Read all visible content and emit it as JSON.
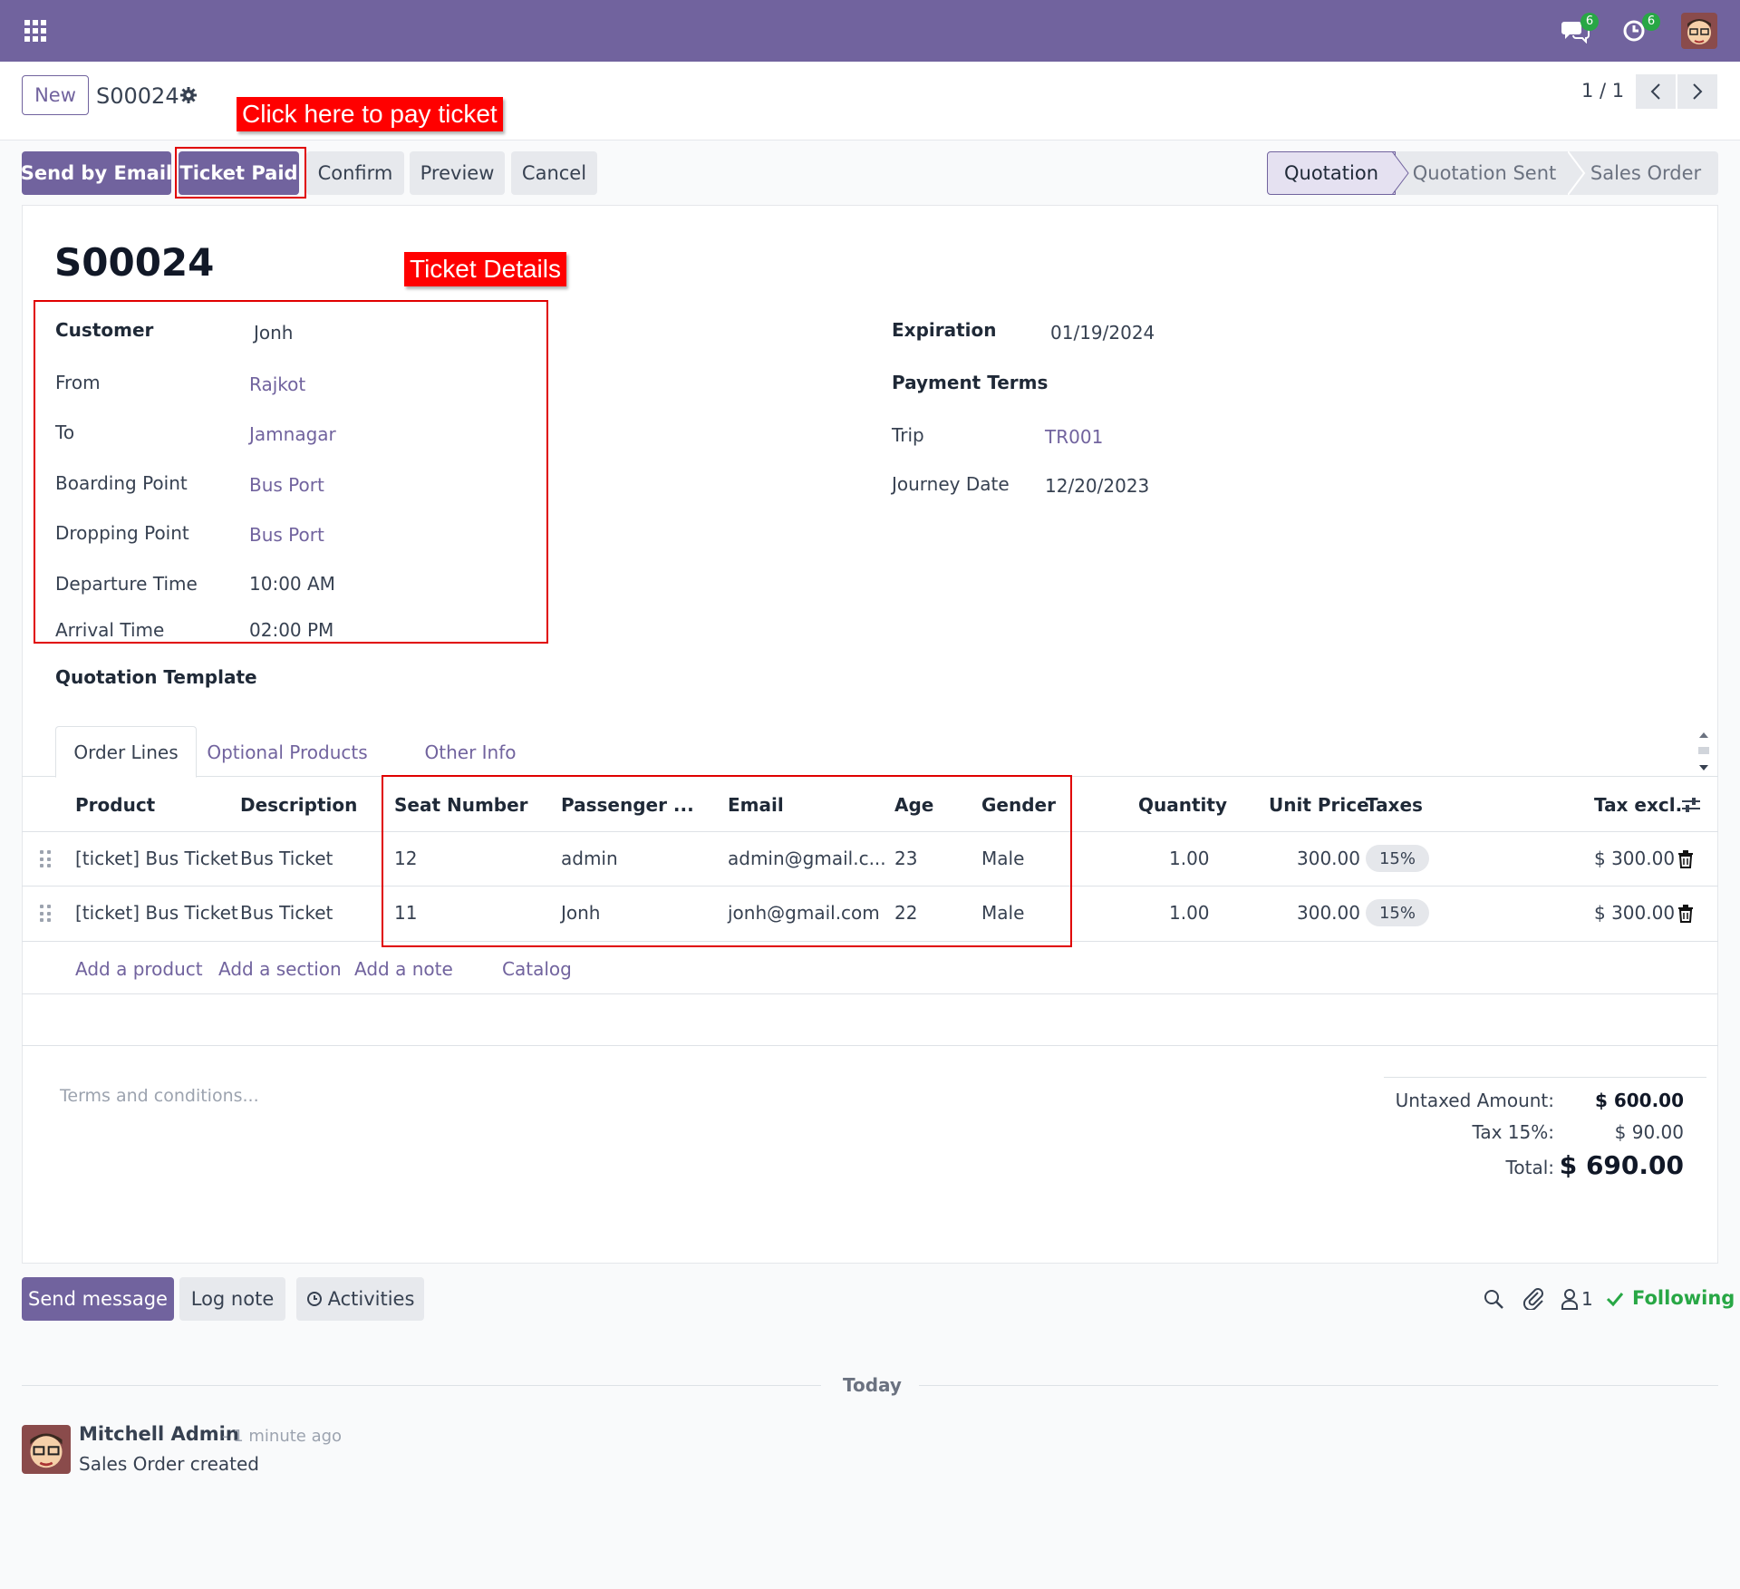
{
  "topbar": {
    "messages_count": "6",
    "activities_count": "6"
  },
  "control_panel": {
    "new_label": "New",
    "record_name": "S00024",
    "pager_text": "1 / 1"
  },
  "annotations": {
    "pay_ticket": "Click here to pay ticket",
    "ticket_details": "Ticket Details"
  },
  "actions": {
    "send_by_email": "Send by Email",
    "ticket_paid": "Ticket Paid",
    "confirm": "Confirm",
    "preview": "Preview",
    "cancel": "Cancel"
  },
  "statusbar": {
    "stages": [
      "Quotation",
      "Quotation Sent",
      "Sales Order"
    ],
    "active": "Quotation"
  },
  "form": {
    "title": "S00024",
    "left": {
      "customer_label": "Customer",
      "customer": "Jonh",
      "from_label": "From",
      "from": "Rajkot",
      "to_label": "To",
      "to": "Jamnagar",
      "boarding_label": "Boarding Point",
      "boarding": "Bus Port",
      "dropping_label": "Dropping Point",
      "dropping": "Bus Port",
      "departure_label": "Departure Time",
      "departure": "10:00 AM",
      "arrival_label": "Arrival Time",
      "arrival": "02:00 PM",
      "template_label": "Quotation Template"
    },
    "right": {
      "expiration_label": "Expiration",
      "expiration": "01/19/2024",
      "payment_terms_label": "Payment Terms",
      "trip_label": "Trip",
      "trip": "TR001",
      "journey_label": "Journey Date",
      "journey": "12/20/2023"
    }
  },
  "tabs": [
    "Order Lines",
    "Optional Products",
    "Other Info"
  ],
  "table": {
    "headers": [
      "Product",
      "Description",
      "Seat Number",
      "Passenger ...",
      "Email",
      "Age",
      "Gender",
      "Quantity",
      "Unit Price",
      "Taxes",
      "Tax excl."
    ],
    "rows": [
      {
        "product": "[ticket] Bus Ticket",
        "description": "Bus Ticket",
        "seat": "12",
        "passenger": "admin",
        "email": "admin@gmail.c...",
        "age": "23",
        "gender": "Male",
        "quantity": "1.00",
        "unit_price": "300.00",
        "taxes": "15%",
        "subtotal": "$ 300.00"
      },
      {
        "product": "[ticket] Bus Ticket",
        "description": "Bus Ticket",
        "seat": "11",
        "passenger": "Jonh",
        "email": "jonh@gmail.com",
        "age": "22",
        "gender": "Male",
        "quantity": "1.00",
        "unit_price": "300.00",
        "taxes": "15%",
        "subtotal": "$ 300.00"
      }
    ],
    "add_product": "Add a product",
    "add_section": "Add a section",
    "add_note": "Add a note",
    "catalog": "Catalog"
  },
  "terms_placeholder": "Terms and conditions...",
  "totals": {
    "untaxed_label": "Untaxed Amount:",
    "untaxed": "$ 600.00",
    "tax_label": "Tax 15%:",
    "tax": "$ 90.00",
    "total_label": "Total:",
    "total": "$ 690.00"
  },
  "chatter": {
    "send_message": "Send message",
    "log_note": "Log note",
    "activities": "Activities",
    "followers_count": "1",
    "following": "Following",
    "today": "Today",
    "author": "Mitchell Admin",
    "time": "- 1 minute ago",
    "body": "Sales Order created"
  },
  "colors": {
    "brand": "#71639e",
    "annotation": "#ff0000",
    "following": "#28a745"
  }
}
